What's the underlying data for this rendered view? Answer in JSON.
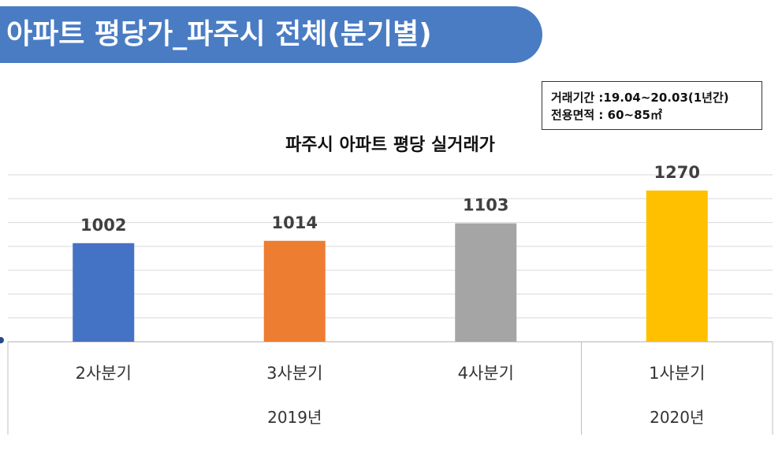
{
  "slide": {
    "title": "아파트 평당가_파주시 전체(분기별)"
  },
  "info_box": {
    "period": "거래기간 :19.04~20.03(1년간)",
    "area": "전용면적 : 60~85㎡"
  },
  "colors": {
    "banner": "#4a7cc4",
    "bar_q2": "#4472c4",
    "bar_q3": "#ed7d31",
    "bar_q4": "#a5a5a5",
    "bar_q1": "#ffc000"
  },
  "chart_data": {
    "type": "bar",
    "title": "파주시 아파트 평당 실거래가",
    "categories": [
      "2사분기",
      "3사분기",
      "4사분기",
      "1사분기"
    ],
    "groups": [
      {
        "label": "2019년",
        "categories": [
          "2사분기",
          "3사분기",
          "4사분기"
        ]
      },
      {
        "label": "2020년",
        "categories": [
          "1사분기"
        ]
      }
    ],
    "values": [
      1002,
      1014,
      1103,
      1270
    ],
    "data_labels": [
      "1002",
      "1014",
      "1103",
      "1270"
    ],
    "bar_colors": [
      "#4472c4",
      "#ed7d31",
      "#a5a5a5",
      "#ffc000"
    ],
    "ylim": [
      500,
      1350
    ],
    "grid": true,
    "legend": "none"
  }
}
